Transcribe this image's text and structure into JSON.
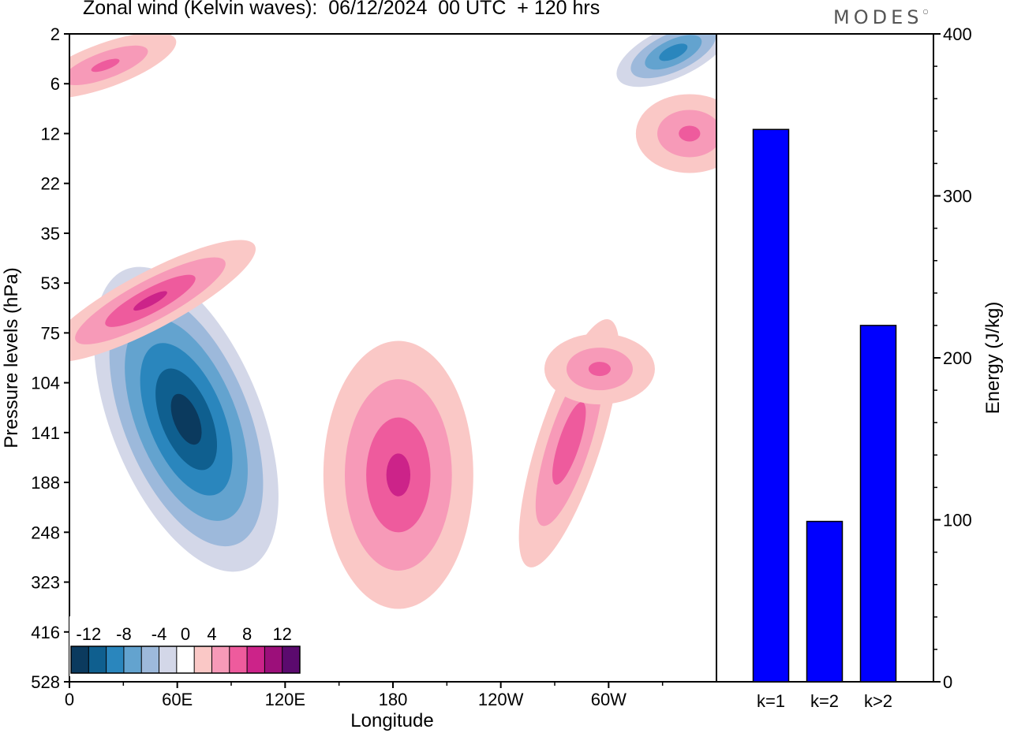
{
  "header": {
    "title": "Zonal wind (Kelvin waves):  06/12/2024  00 UTC  + 120 hrs",
    "brand": "MODES"
  },
  "chart_data": [
    {
      "type": "heatmap",
      "title": "Zonal wind (Kelvin waves):  06/12/2024  00 UTC  + 120 hrs",
      "xlabel": "Longitude",
      "ylabel": "Pressure levels (hPa)",
      "x_ticks": [
        "0",
        "60E",
        "120E",
        "180",
        "120W",
        "60W"
      ],
      "x_tick_degrees_east": [
        0,
        60,
        120,
        180,
        240,
        300
      ],
      "xlim_degrees_east": [
        0,
        360
      ],
      "y_ticks": [
        "2",
        "6",
        "12",
        "22",
        "35",
        "53",
        "75",
        "104",
        "141",
        "188",
        "248",
        "323",
        "416",
        "528"
      ],
      "y_scale": "log-pressure (inverted)",
      "ylim": [
        528,
        2
      ],
      "colorbar": {
        "tick_labels": [
          "-12",
          "-8",
          "-4",
          "0",
          "4",
          "8",
          "12"
        ],
        "levels": [
          -14,
          -12,
          -10,
          -8,
          -6,
          -4,
          -2,
          2,
          4,
          6,
          8,
          10,
          12,
          14
        ],
        "colors": [
          "#0b3a5e",
          "#0f5f8f",
          "#2a86bd",
          "#63a3cf",
          "#9db9db",
          "#d3d7e8",
          "#ffffff",
          "#fac8c6",
          "#f79ab8",
          "#ee5b9d",
          "#cc2389",
          "#9c0f7a",
          "#5b0a6e"
        ],
        "location": "bottom-left"
      },
      "features": [
        {
          "sign": "negative",
          "peak": -13,
          "center_lon": 65,
          "center_hpa": 130
        },
        {
          "sign": "positive",
          "peak": 8,
          "center_lon": 183,
          "center_hpa": 180
        },
        {
          "sign": "positive",
          "peak": 8,
          "center_lon": 45,
          "center_hpa": 60
        },
        {
          "sign": "positive",
          "peak": 7,
          "center_lon": 278,
          "center_hpa": 150
        },
        {
          "sign": "positive",
          "peak": 6,
          "center_lon": 295,
          "center_hpa": 95
        },
        {
          "sign": "negative",
          "peak": -9,
          "center_lon": 336,
          "center_hpa": 3
        },
        {
          "sign": "positive",
          "peak": 6,
          "center_lon": 345,
          "center_hpa": 12
        },
        {
          "sign": "positive",
          "peak": 6,
          "center_lon": 20,
          "center_hpa": 4
        }
      ],
      "grid": false
    },
    {
      "type": "bar",
      "categories": [
        "k=1",
        "k=2",
        "k>2"
      ],
      "values": [
        341,
        99,
        220
      ],
      "ylabel": "Energy (J/kg)",
      "ylim": [
        0,
        400
      ],
      "y_ticks": [
        0,
        100,
        200,
        300,
        400
      ],
      "y_axis_side": "right",
      "bar_color": "#0000ff",
      "grid": false
    }
  ]
}
